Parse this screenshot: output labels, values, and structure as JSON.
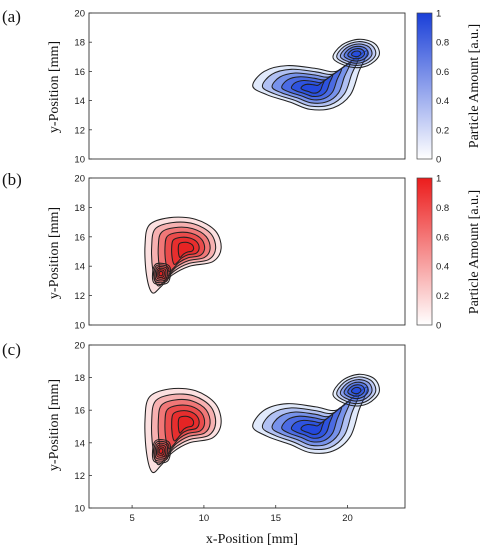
{
  "chart_data": [
    {
      "panel_label": "(a)",
      "type": "heatmap",
      "xlabel": "",
      "ylabel": "y-Position [mm]",
      "xlim": [
        2,
        24
      ],
      "ylim": [
        10,
        20
      ],
      "x_ticks": [],
      "y_ticks": [
        "10",
        "12",
        "14",
        "16",
        "18",
        "20"
      ],
      "colormap_color": "#1e46dc",
      "colorbar": {
        "label": "Particle Amount [a.u.]",
        "ticks": [
          "0",
          "0.2",
          "0.4",
          "0.6",
          "0.8",
          "1"
        ]
      },
      "clusters": [
        {
          "peak": [
            17.6,
            14.8
          ],
          "height": 1.0
        },
        {
          "peak": [
            20.6,
            17.2
          ],
          "height": 0.85
        }
      ]
    },
    {
      "panel_label": "(b)",
      "type": "heatmap",
      "xlabel": "",
      "ylabel": "y-Position [mm]",
      "xlim": [
        2,
        24
      ],
      "ylim": [
        10,
        20
      ],
      "x_ticks": [],
      "y_ticks": [
        "10",
        "12",
        "14",
        "16",
        "18",
        "20"
      ],
      "colormap_color": "#e61e1e",
      "colorbar": {
        "label": "Particle Amount [a.u.]",
        "ticks": [
          "0",
          "0.2",
          "0.4",
          "0.6",
          "0.8",
          "1"
        ]
      },
      "clusters": [
        {
          "peak": [
            8.8,
            15.2
          ],
          "height": 1.0
        },
        {
          "peak": [
            7.0,
            13.5
          ],
          "height": 0.8
        }
      ]
    },
    {
      "panel_label": "(c)",
      "type": "heatmap",
      "xlabel": "x-Position [mm]",
      "ylabel": "y-Position [mm]",
      "xlim": [
        2,
        24
      ],
      "ylim": [
        10,
        20
      ],
      "x_ticks": [
        "5",
        "10",
        "15",
        "20"
      ],
      "y_ticks": [
        "10",
        "12",
        "14",
        "16",
        "18",
        "20"
      ],
      "colormap_color": "mixed",
      "clusters": [
        {
          "color": "#e61e1e",
          "peak": [
            8.8,
            15.2
          ],
          "height": 1.0
        },
        {
          "color": "#e61e1e",
          "peak": [
            7.0,
            13.5
          ],
          "height": 0.8
        },
        {
          "color": "#1e46dc",
          "peak": [
            17.6,
            14.8
          ],
          "height": 1.0
        },
        {
          "color": "#1e46dc",
          "peak": [
            20.6,
            17.2
          ],
          "height": 0.85
        }
      ]
    }
  ]
}
